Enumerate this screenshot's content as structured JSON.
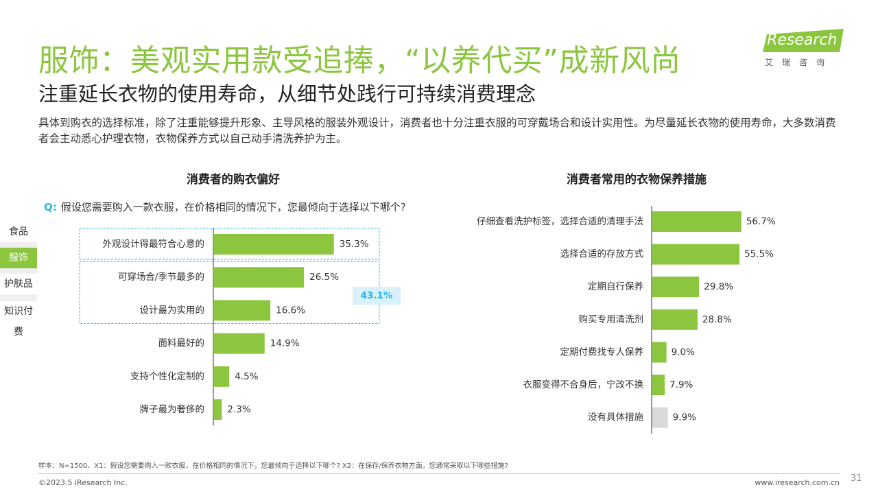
{
  "header": {
    "title": "服饰：美观实用款受追捧，“以养代买”成新风尚",
    "subtitle": "注重延长衣物的使用寿命，从细节处践行可持续消费理念",
    "description": "具体到购衣的选择标准，除了注重能够提升形象、主导风格的服装外观设计，消费者也十分注重衣服的可穿戴场合和设计实用性。为尽量延长衣物的使用寿命，大多数消费者会主动悉心护理衣物，衣物保养方式以自己动手清洗养护为主。"
  },
  "logo": {
    "text_en": "iResearch",
    "text_cn": "艾瑞咨询"
  },
  "sidebar": {
    "items": [
      {
        "label": "食品",
        "active": false
      },
      {
        "label": "服饰",
        "active": true
      },
      {
        "label": "护肤品",
        "active": false
      },
      {
        "label": "知识付费",
        "active": false
      }
    ]
  },
  "question": {
    "prefix": "Q:",
    "text": "假设您需要购入一款衣服，在价格相同的情况下，您最倾向于选择以下哪个?"
  },
  "colors": {
    "accent": "#8cc63f",
    "bar_gray": "#d9d9d9",
    "highlight": "#29b6e6",
    "highlight_bg": "#d9f1fb"
  },
  "chart_data": [
    {
      "type": "bar",
      "orientation": "horizontal",
      "title": "消费者的购衣偏好",
      "categories": [
        "外观设计得最符合心意的",
        "可穿场合/季节最多的",
        "设计最为实用的",
        "面料最好的",
        "支持个性化定制的",
        "牌子最为奢侈的"
      ],
      "values": [
        35.3,
        26.5,
        16.6,
        14.9,
        4.5,
        2.3
      ],
      "value_labels": [
        "35.3%",
        "26.5%",
        "16.6%",
        "14.9%",
        "4.5%",
        "2.3%"
      ],
      "annotation": {
        "label": "43.1%",
        "groups_items": [
          1,
          2
        ]
      }
    },
    {
      "type": "bar",
      "orientation": "horizontal",
      "title": "消费者常用的衣物保养措施",
      "categories": [
        "仔细查看洗护标签，选择合适的清理手法",
        "选择合适的存放方式",
        "定期自行保养",
        "购买专用清洗剂",
        "定期付费找专人保养",
        "衣服变得不合身后，宁改不换",
        "没有具体措施"
      ],
      "values": [
        56.7,
        55.5,
        29.8,
        28.8,
        9.0,
        7.9,
        9.9
      ],
      "value_labels": [
        "56.7%",
        "55.5%",
        "29.8%",
        "28.8%",
        "9.0%",
        "7.9%",
        "9.9%"
      ],
      "gray_items": [
        6
      ]
    }
  ],
  "footer": {
    "note": "样本：N=1500、X1：假设您需要购入一款衣服，在价格相同的情况下，您最倾向于选择以下哪个? X2：在保存/保养衣物方面，您通常采取以下哪些措施?",
    "copyright": "©2023.5 iResearch Inc.",
    "website": "www.iresearch.com.cn",
    "page": "31"
  }
}
